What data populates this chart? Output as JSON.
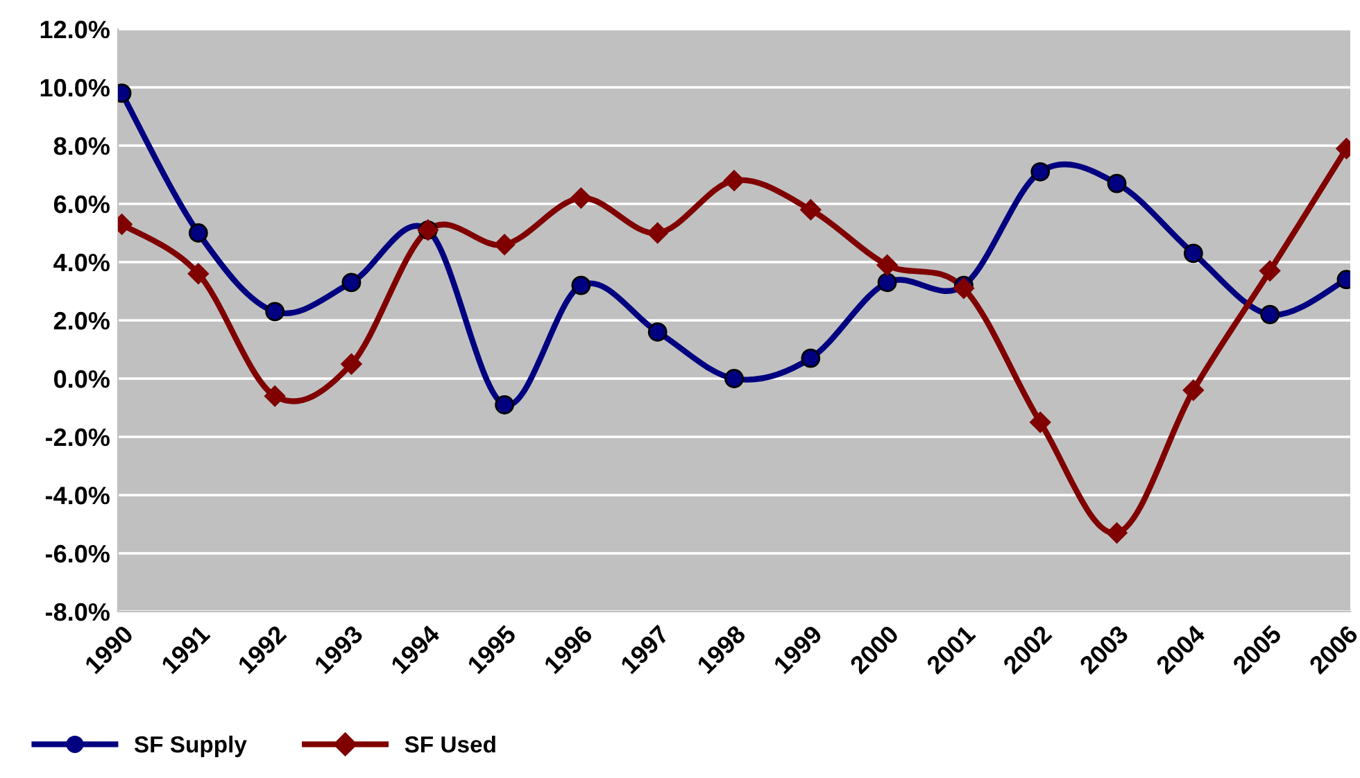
{
  "chart_data": {
    "type": "line",
    "categories": [
      "1990",
      "1991",
      "1992",
      "1993",
      "1994",
      "1995",
      "1996",
      "1997",
      "1998",
      "1999",
      "2000",
      "2001",
      "2002",
      "2003",
      "2004",
      "2005",
      "2006"
    ],
    "series": [
      {
        "name": "SF Supply",
        "color": "#000080",
        "marker": "circle",
        "values": [
          9.8,
          5.0,
          2.3,
          3.3,
          5.1,
          -0.9,
          3.2,
          1.6,
          0.0,
          0.7,
          3.3,
          3.2,
          7.1,
          6.7,
          4.3,
          2.2,
          3.4
        ]
      },
      {
        "name": "SF Used",
        "color": "#800000",
        "marker": "diamond",
        "values": [
          5.3,
          3.6,
          -0.6,
          0.5,
          5.1,
          4.6,
          6.2,
          5.0,
          6.8,
          5.8,
          3.9,
          3.1,
          -1.5,
          -5.3,
          -0.4,
          3.7,
          7.9
        ]
      }
    ],
    "ylim": [
      -8,
      12
    ],
    "yticks": [
      {
        "value": -8,
        "label": "-8.0%"
      },
      {
        "value": -6,
        "label": "-6.0%"
      },
      {
        "value": -4,
        "label": "-4.0%"
      },
      {
        "value": -2,
        "label": "-2.0%"
      },
      {
        "value": 0,
        "label": "0.0%"
      },
      {
        "value": 2,
        "label": "2.0%"
      },
      {
        "value": 4,
        "label": "4.0%"
      },
      {
        "value": 6,
        "label": "6.0%"
      },
      {
        "value": 8,
        "label": "8.0%"
      },
      {
        "value": 10,
        "label": "10.0%"
      },
      {
        "value": 12,
        "label": "12.0%"
      }
    ],
    "grid": "y",
    "legend": "bottom left",
    "line_style": "solid"
  }
}
